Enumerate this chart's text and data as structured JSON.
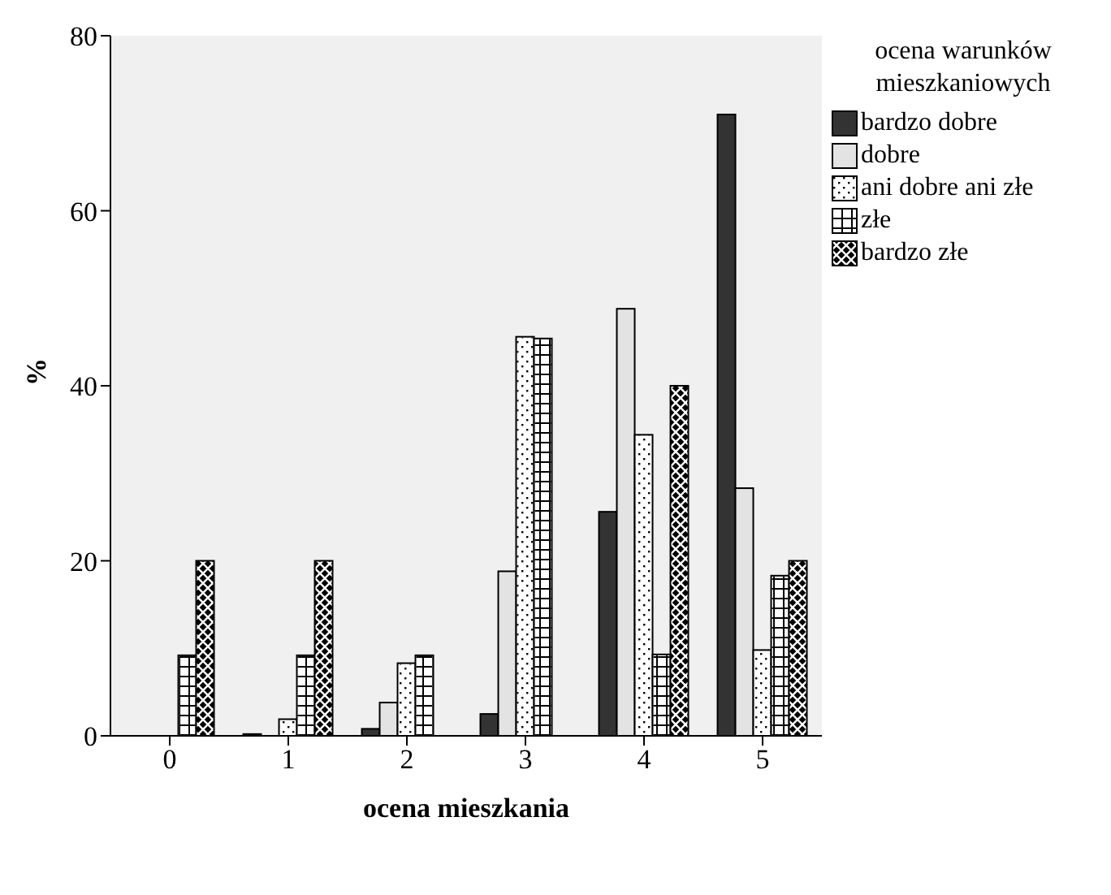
{
  "chart_data": {
    "type": "bar",
    "xlabel": "ocena mieszkania",
    "ylabel": "%",
    "legend_title": "ocena warunków mieszkaniowych",
    "categories": [
      "0",
      "1",
      "2",
      "3",
      "4",
      "5"
    ],
    "series": [
      {
        "name": "bardzo dobre",
        "color": "#333333",
        "values": [
          0,
          0.2,
          0.8,
          2.5,
          25.6,
          71.0
        ]
      },
      {
        "name": "dobre",
        "color": "#e3e3e3",
        "values": [
          0,
          0,
          3.8,
          18.8,
          48.8,
          28.3
        ]
      },
      {
        "name": "ani dobre ani złe",
        "color": "#ffffff",
        "values": [
          0,
          1.9,
          8.3,
          45.6,
          34.4,
          9.8
        ]
      },
      {
        "name": "złe",
        "color": "#ffffff",
        "values": [
          9.2,
          9.2,
          9.2,
          45.4,
          9.3,
          18.3
        ]
      },
      {
        "name": "bardzo złe",
        "color": "#000000",
        "values": [
          20,
          20,
          0,
          0,
          40,
          20
        ]
      }
    ],
    "ylim": [
      0,
      80
    ],
    "yticks": [
      0,
      20,
      40,
      60,
      80
    ],
    "grid": false,
    "legend": "top right"
  }
}
